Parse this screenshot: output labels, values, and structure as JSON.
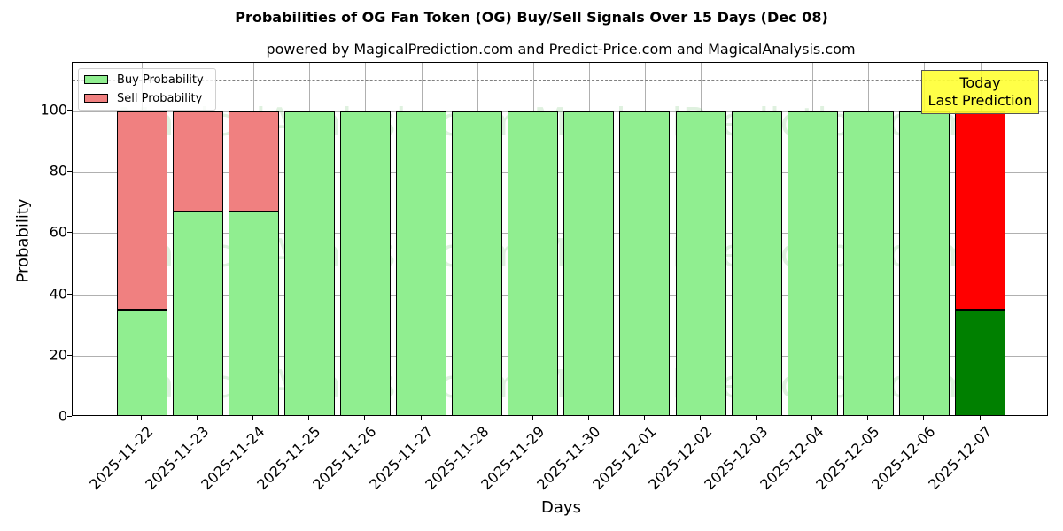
{
  "title": "Probabilities of OG Fan Token (OG) Buy/Sell Signals Over 15 Days (Dec 08)",
  "subtitle": "powered by MagicalPrediction.com and Predict-Price.com and MagicalAnalysis.com",
  "xlabel": "Days",
  "ylabel": "Probability",
  "legend": {
    "buy": "Buy Probability",
    "sell": "Sell Probability"
  },
  "annotation": {
    "line1": "Today",
    "line2": "Last Prediction"
  },
  "watermarks": [
    "MagicalAnalysis.com",
    "MagicalPrediction.com"
  ],
  "colors": {
    "buy": "#90ee90",
    "sell": "#f08080",
    "today_buy": "#008000",
    "today_sell": "#ff0000",
    "annotation_bg": "#ffff33"
  },
  "yticks": [
    "0",
    "20",
    "40",
    "60",
    "80",
    "100"
  ],
  "chart_data": {
    "type": "bar",
    "stacked": true,
    "title": "Probabilities of OG Fan Token (OG) Buy/Sell Signals Over 15 Days (Dec 08)",
    "subtitle": "powered by MagicalPrediction.com and Predict-Price.com and MagicalAnalysis.com",
    "xlabel": "Days",
    "ylabel": "Probability",
    "ylim": [
      0,
      115
    ],
    "grid": true,
    "legend_position": "upper left",
    "reference_line": {
      "y": 110,
      "style": "dashed",
      "color": "#808080"
    },
    "categories": [
      "2025-11-22",
      "2025-11-23",
      "2025-11-24",
      "2025-11-25",
      "2025-11-26",
      "2025-11-27",
      "2025-11-28",
      "2025-11-29",
      "2025-11-30",
      "2025-12-01",
      "2025-12-02",
      "2025-12-03",
      "2025-12-04",
      "2025-12-05",
      "2025-12-06",
      "2025-12-07"
    ],
    "series": [
      {
        "name": "Buy Probability",
        "values": [
          35,
          67,
          67,
          100,
          100,
          100,
          100,
          100,
          100,
          100,
          100,
          100,
          100,
          100,
          100,
          35
        ]
      },
      {
        "name": "Sell Probability",
        "values": [
          65,
          33,
          33,
          0,
          0,
          0,
          0,
          0,
          0,
          0,
          0,
          0,
          0,
          0,
          0,
          65
        ]
      }
    ],
    "annotations": [
      {
        "text": "Today\nLast Prediction",
        "x": "2025-12-07"
      }
    ]
  }
}
